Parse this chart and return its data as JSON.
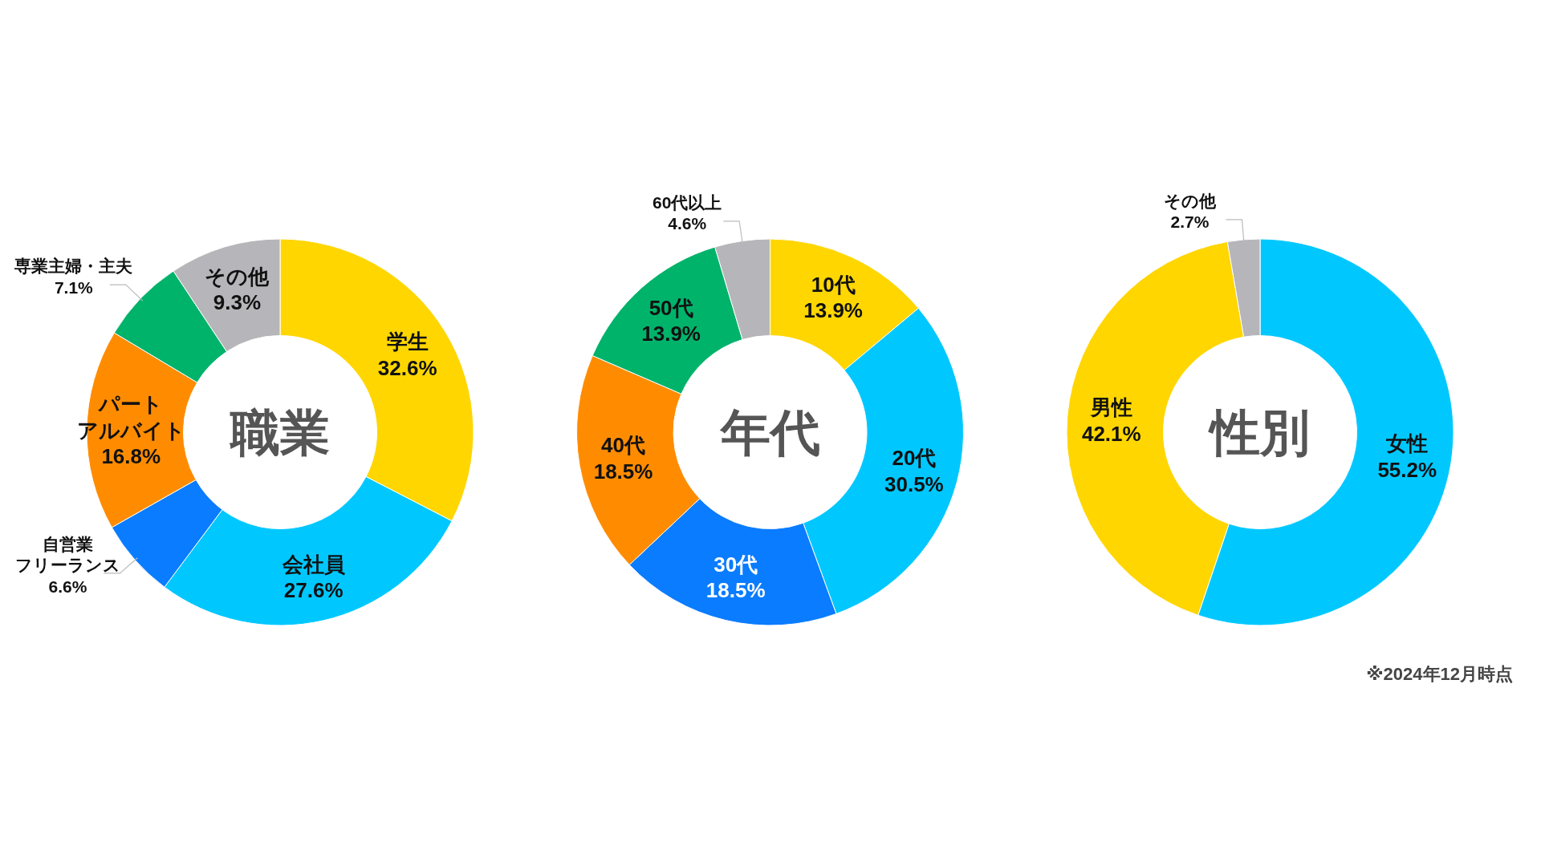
{
  "chart_data": [
    {
      "type": "donut",
      "title": "職業",
      "categories": [
        "学生",
        "会社員",
        "自営業フリーランス",
        "パートアルバイト",
        "専業主婦・主夫",
        "その他"
      ],
      "values": [
        32.6,
        27.6,
        6.6,
        16.8,
        7.1,
        9.3
      ],
      "value_labels": [
        "32.6%",
        "27.6%",
        "6.6%",
        "16.8%",
        "7.1%",
        "9.3%"
      ],
      "colors": [
        "#ffd600",
        "#00c8ff",
        "#0a7cff",
        "#ff8c00",
        "#00b36b",
        "#b6b6ba"
      ]
    },
    {
      "type": "donut",
      "title": "年代",
      "categories": [
        "10代",
        "20代",
        "30代",
        "40代",
        "50代",
        "60代以上"
      ],
      "values": [
        13.9,
        30.5,
        18.5,
        18.5,
        13.9,
        4.6
      ],
      "value_labels": [
        "13.9%",
        "30.5%",
        "18.5%",
        "18.5%",
        "13.9%",
        "4.6%"
      ],
      "colors": [
        "#ffd600",
        "#00c8ff",
        "#0a7cff",
        "#ff8c00",
        "#00b36b",
        "#b6b6ba"
      ]
    },
    {
      "type": "donut",
      "title": "性別",
      "categories": [
        "女性",
        "男性",
        "その他"
      ],
      "values": [
        55.2,
        42.1,
        2.7
      ],
      "value_labels": [
        "55.2%",
        "42.1%",
        "2.7%"
      ],
      "colors": [
        "#00c8ff",
        "#ffd600",
        "#b6b6ba"
      ],
      "annotations": [
        "※2024年12月時点"
      ]
    }
  ]
}
